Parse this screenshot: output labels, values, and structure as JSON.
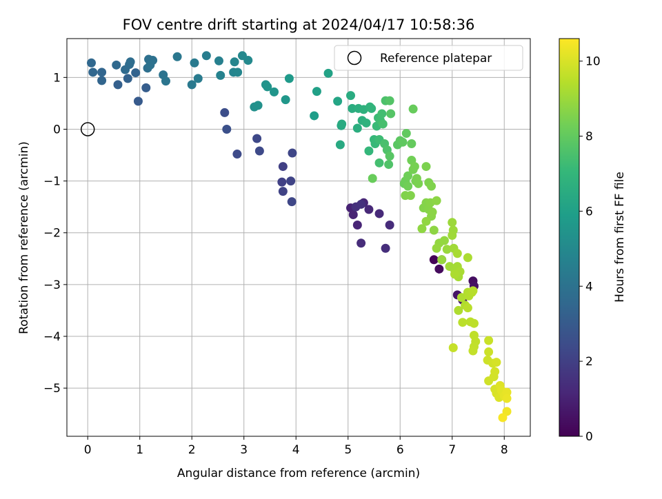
{
  "chart_data": {
    "type": "scatter",
    "title": "FOV centre drift starting at 2024/04/17 10:58:36",
    "xlabel": "Angular distance from reference (arcmin)",
    "ylabel": "Rotation from reference (arcmin)",
    "xlim": [
      -0.4,
      8.5
    ],
    "ylim": [
      -5.93,
      1.75
    ],
    "xticks": [
      0,
      1,
      2,
      3,
      4,
      5,
      6,
      7,
      8
    ],
    "yticks": [
      1,
      0,
      -1,
      -2,
      -3,
      -4,
      -5
    ],
    "grid": true,
    "legend": {
      "position": "top-right",
      "entries": [
        "Reference platepar"
      ]
    },
    "reference_point": {
      "x": 0,
      "y": 0,
      "label": "Reference platepar"
    },
    "colorbar": {
      "label": "Hours from first FF file",
      "colormap": "viridis",
      "range": [
        0,
        10.6
      ],
      "ticks": [
        0,
        2,
        4,
        6,
        8,
        10
      ]
    },
    "series": [
      {
        "colored_by": "hours",
        "points": [
          [
            6.65,
            -2.52,
            0.1
          ],
          [
            6.8,
            -2.52,
            0.2
          ],
          [
            6.75,
            -2.7,
            0.3
          ],
          [
            7.4,
            -2.93,
            0.4
          ],
          [
            7.42,
            -3.03,
            0.5
          ],
          [
            7.1,
            -3.2,
            0.6
          ],
          [
            7.2,
            -3.3,
            0.7
          ],
          [
            7.3,
            -3.2,
            0.8
          ],
          [
            5.05,
            -1.52,
            1.0
          ],
          [
            5.1,
            -1.65,
            1.05
          ],
          [
            5.18,
            -1.85,
            1.1
          ],
          [
            5.3,
            -1.42,
            1.15
          ],
          [
            5.4,
            -1.55,
            1.2
          ],
          [
            5.6,
            -1.63,
            1.25
          ],
          [
            5.8,
            -1.85,
            1.3
          ],
          [
            5.25,
            -2.2,
            1.35
          ],
          [
            5.72,
            -2.3,
            1.4
          ],
          [
            5.15,
            -1.5,
            1.45
          ],
          [
            5.25,
            -1.45,
            1.5
          ],
          [
            3.75,
            -0.72,
            2.0
          ],
          [
            3.73,
            -1.02,
            2.05
          ],
          [
            3.75,
            -1.2,
            2.1
          ],
          [
            3.9,
            -1.0,
            2.15
          ],
          [
            3.93,
            -0.46,
            2.2
          ],
          [
            3.92,
            -1.4,
            2.25
          ],
          [
            3.25,
            -0.18,
            2.3
          ],
          [
            3.3,
            -0.42,
            2.35
          ],
          [
            2.87,
            -0.48,
            2.4
          ],
          [
            2.63,
            0.32,
            2.5
          ],
          [
            2.67,
            0.0,
            2.6
          ],
          [
            0.97,
            0.54,
            3.0
          ],
          [
            1.12,
            0.8,
            3.1
          ],
          [
            0.58,
            0.86,
            3.2
          ],
          [
            0.77,
            0.98,
            3.3
          ],
          [
            0.92,
            1.09,
            3.35
          ],
          [
            0.27,
            0.94,
            3.4
          ],
          [
            0.27,
            1.1,
            3.45
          ],
          [
            0.1,
            1.1,
            3.5
          ],
          [
            0.07,
            1.28,
            3.55
          ],
          [
            0.55,
            1.24,
            3.6
          ],
          [
            0.72,
            1.15,
            3.65
          ],
          [
            0.8,
            1.25,
            3.7
          ],
          [
            0.82,
            1.3,
            3.75
          ],
          [
            1.15,
            1.18,
            3.85
          ],
          [
            1.17,
            1.35,
            3.9
          ],
          [
            1.25,
            1.33,
            3.95
          ],
          [
            1.2,
            1.24,
            4.0
          ],
          [
            1.45,
            1.05,
            4.05
          ],
          [
            1.5,
            0.93,
            4.1
          ],
          [
            1.72,
            1.4,
            4.2
          ],
          [
            2.0,
            0.86,
            4.3
          ],
          [
            2.05,
            1.28,
            4.35
          ],
          [
            2.12,
            0.98,
            4.4
          ],
          [
            2.28,
            1.42,
            4.5
          ],
          [
            2.52,
            1.32,
            4.6
          ],
          [
            2.55,
            1.04,
            4.7
          ],
          [
            2.8,
            1.1,
            4.8
          ],
          [
            2.82,
            1.3,
            4.85
          ],
          [
            2.88,
            1.1,
            4.9
          ],
          [
            2.97,
            1.42,
            4.95
          ],
          [
            3.08,
            1.33,
            5.0
          ],
          [
            3.2,
            0.43,
            5.3
          ],
          [
            3.27,
            0.46,
            5.35
          ],
          [
            3.42,
            0.86,
            5.4
          ],
          [
            3.45,
            0.82,
            5.45
          ],
          [
            3.58,
            0.72,
            5.5
          ],
          [
            3.8,
            0.57,
            5.6
          ],
          [
            3.87,
            0.98,
            5.7
          ],
          [
            4.35,
            0.26,
            5.9
          ],
          [
            4.4,
            0.73,
            6.0
          ],
          [
            4.62,
            1.08,
            6.1
          ],
          [
            4.8,
            0.54,
            6.2
          ],
          [
            4.87,
            0.07,
            6.3
          ],
          [
            4.85,
            -0.3,
            6.4
          ],
          [
            4.88,
            0.1,
            6.45
          ],
          [
            5.05,
            0.65,
            6.5
          ],
          [
            5.08,
            0.4,
            6.55
          ],
          [
            5.18,
            0.02,
            6.6
          ],
          [
            5.2,
            0.4,
            6.65
          ],
          [
            5.27,
            0.17,
            6.7
          ],
          [
            5.3,
            0.38,
            6.75
          ],
          [
            5.35,
            0.12,
            6.8
          ],
          [
            5.42,
            0.43,
            6.85
          ],
          [
            5.45,
            0.4,
            6.9
          ],
          [
            5.4,
            -0.42,
            7.0
          ],
          [
            5.5,
            -0.2,
            7.05
          ],
          [
            5.52,
            -0.28,
            7.1
          ],
          [
            5.55,
            0.06,
            7.15
          ],
          [
            5.58,
            0.22,
            7.2
          ],
          [
            5.6,
            -0.2,
            7.25
          ],
          [
            5.62,
            0.17,
            7.3
          ],
          [
            5.65,
            0.3,
            7.35
          ],
          [
            5.6,
            -0.65,
            7.4
          ],
          [
            5.67,
            0.1,
            7.45
          ],
          [
            5.7,
            -0.28,
            7.5
          ],
          [
            5.72,
            0.55,
            7.55
          ],
          [
            5.75,
            -0.4,
            7.6
          ],
          [
            5.78,
            -0.68,
            7.65
          ],
          [
            5.8,
            0.55,
            7.7
          ],
          [
            5.82,
            0.3,
            7.75
          ],
          [
            5.8,
            -0.52,
            7.8
          ],
          [
            5.95,
            -0.3,
            7.85
          ],
          [
            6.0,
            -0.22,
            7.9
          ],
          [
            6.05,
            -0.25,
            7.95
          ],
          [
            6.12,
            -0.08,
            8.0
          ],
          [
            6.22,
            -0.28,
            8.05
          ],
          [
            6.25,
            0.39,
            8.1
          ],
          [
            5.47,
            -0.95,
            8.12
          ],
          [
            6.08,
            -1.05,
            8.15
          ],
          [
            6.1,
            -1.0,
            8.2
          ],
          [
            6.15,
            -0.9,
            8.25
          ],
          [
            6.15,
            -1.1,
            8.28
          ],
          [
            6.22,
            -0.6,
            8.3
          ],
          [
            6.25,
            -0.78,
            8.35
          ],
          [
            6.28,
            -0.72,
            8.38
          ],
          [
            6.3,
            -1.0,
            8.4
          ],
          [
            6.32,
            -0.95,
            8.42
          ],
          [
            6.35,
            -1.05,
            8.45
          ],
          [
            6.5,
            -0.72,
            8.48
          ],
          [
            6.55,
            -1.03,
            8.5
          ],
          [
            6.6,
            -1.1,
            8.52
          ],
          [
            6.1,
            -1.28,
            8.55
          ],
          [
            6.2,
            -1.28,
            8.57
          ],
          [
            6.45,
            -1.52,
            8.6
          ],
          [
            6.5,
            -1.42,
            8.62
          ],
          [
            6.55,
            -1.55,
            8.65
          ],
          [
            6.58,
            -1.42,
            8.68
          ],
          [
            6.6,
            -1.68,
            8.7
          ],
          [
            6.62,
            -1.6,
            8.72
          ],
          [
            6.7,
            -1.38,
            8.75
          ],
          [
            6.65,
            -1.95,
            8.78
          ],
          [
            6.42,
            -1.92,
            8.8
          ],
          [
            6.5,
            -1.78,
            8.82
          ],
          [
            6.75,
            -2.2,
            8.85
          ],
          [
            6.85,
            -2.15,
            8.88
          ],
          [
            6.7,
            -2.3,
            8.9
          ],
          [
            6.8,
            -2.52,
            8.92
          ],
          [
            6.9,
            -2.32,
            8.95
          ],
          [
            7.0,
            -1.8,
            9.0
          ],
          [
            7.02,
            -1.95,
            9.02
          ],
          [
            7.0,
            -2.05,
            9.05
          ],
          [
            7.03,
            -2.3,
            9.08
          ],
          [
            6.95,
            -2.65,
            9.1
          ],
          [
            7.05,
            -2.72,
            9.12
          ],
          [
            7.1,
            -2.65,
            9.15
          ],
          [
            7.12,
            -2.85,
            9.18
          ],
          [
            7.1,
            -2.4,
            9.2
          ],
          [
            7.15,
            -2.75,
            9.22
          ],
          [
            7.3,
            -2.48,
            9.25
          ],
          [
            7.05,
            -2.8,
            9.28
          ],
          [
            7.12,
            -3.5,
            9.3
          ],
          [
            7.18,
            -3.25,
            9.32
          ],
          [
            7.25,
            -3.4,
            9.35
          ],
          [
            7.3,
            -3.15,
            9.38
          ],
          [
            7.32,
            -3.22,
            9.4
          ],
          [
            7.38,
            -3.15,
            9.42
          ],
          [
            7.4,
            -3.12,
            9.45
          ],
          [
            7.3,
            -3.45,
            9.48
          ],
          [
            7.2,
            -3.73,
            9.5
          ],
          [
            7.35,
            -3.72,
            9.52
          ],
          [
            7.42,
            -3.75,
            9.55
          ],
          [
            7.42,
            -3.98,
            9.58
          ],
          [
            7.45,
            -4.1,
            9.6
          ],
          [
            7.42,
            -4.2,
            9.62
          ],
          [
            7.4,
            -4.28,
            9.65
          ],
          [
            7.02,
            -4.22,
            9.68
          ],
          [
            7.7,
            -4.08,
            9.75
          ],
          [
            7.7,
            -4.3,
            9.8
          ],
          [
            7.68,
            -4.46,
            9.82
          ],
          [
            7.7,
            -4.86,
            9.85
          ],
          [
            7.78,
            -4.52,
            9.88
          ],
          [
            7.8,
            -4.78,
            9.9
          ],
          [
            7.82,
            -4.68,
            9.92
          ],
          [
            7.85,
            -4.5,
            9.95
          ],
          [
            7.82,
            -5.02,
            9.98
          ],
          [
            7.85,
            -5.1,
            10.0
          ],
          [
            7.9,
            -5.18,
            10.05
          ],
          [
            7.92,
            -4.95,
            10.1
          ],
          [
            7.95,
            -5.05,
            10.15
          ],
          [
            8.0,
            -5.15,
            10.2
          ],
          [
            8.05,
            -5.08,
            10.25
          ],
          [
            8.05,
            -5.2,
            10.3
          ],
          [
            8.05,
            -5.45,
            10.4
          ],
          [
            7.97,
            -5.57,
            10.5
          ]
        ]
      }
    ]
  }
}
